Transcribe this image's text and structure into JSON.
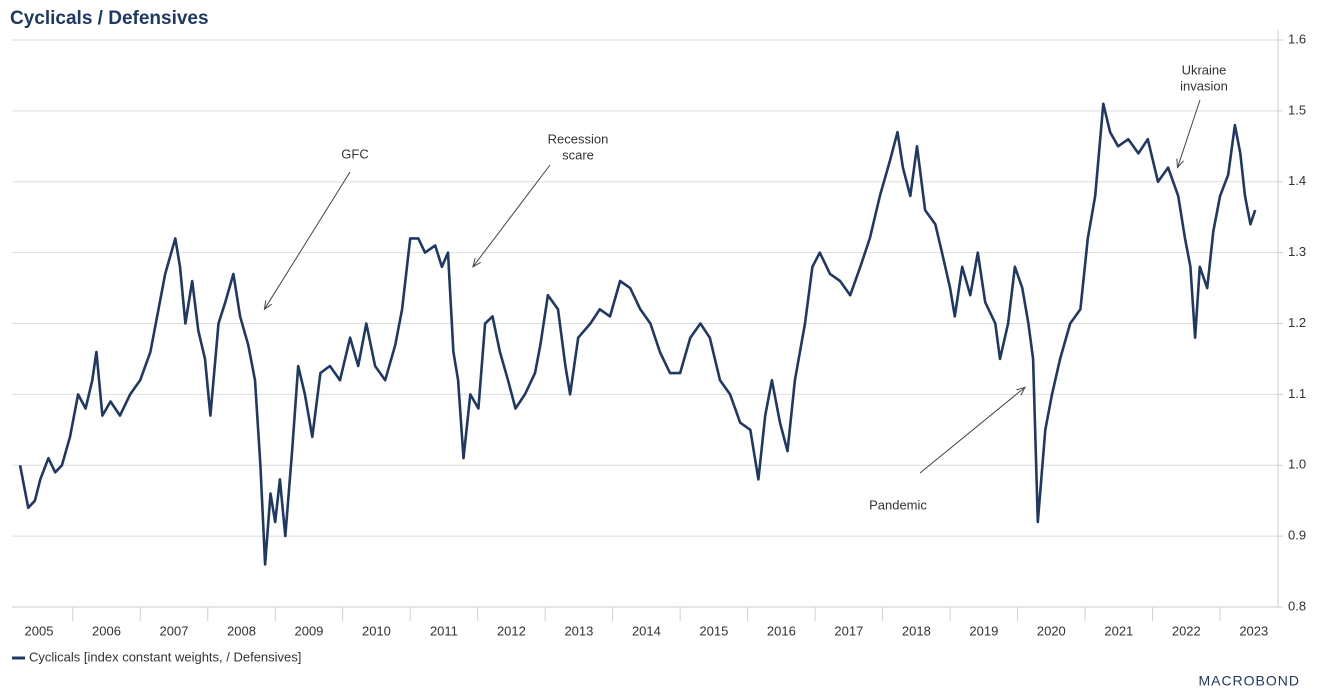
{
  "chart_data": {
    "type": "line",
    "title": "Cyclicals / Defensives",
    "x": [
      2005.22,
      2005.34,
      2005.44,
      2005.52,
      2005.64,
      2005.74,
      2005.84,
      2005.96,
      2006.08,
      2006.19,
      2006.29,
      2006.35,
      2006.44,
      2006.56,
      2006.7,
      2006.85,
      2007.0,
      2007.15,
      2007.27,
      2007.37,
      2007.52,
      2007.59,
      2007.67,
      2007.77,
      2007.86,
      2007.96,
      2008.04,
      2008.16,
      2008.26,
      2008.38,
      2008.48,
      2008.6,
      2008.7,
      2008.78,
      2008.85,
      2008.93,
      2009.0,
      2009.07,
      2009.15,
      2009.25,
      2009.34,
      2009.44,
      2009.55,
      2009.67,
      2009.81,
      2009.96,
      2010.11,
      2010.23,
      2010.35,
      2010.48,
      2010.63,
      2010.78,
      2010.88,
      2011.0,
      2011.12,
      2011.22,
      2011.37,
      2011.47,
      2011.56,
      2011.64,
      2011.71,
      2011.79,
      2011.89,
      2012.01,
      2012.11,
      2012.22,
      2012.33,
      2012.45,
      2012.56,
      2012.7,
      2012.85,
      2012.93,
      2013.04,
      2013.19,
      2013.3,
      2013.37,
      2013.49,
      2013.67,
      2013.81,
      2013.96,
      2014.11,
      2014.26,
      2014.41,
      2014.56,
      2014.7,
      2014.85,
      2015.0,
      2015.15,
      2015.3,
      2015.44,
      2015.59,
      2015.74,
      2015.89,
      2016.04,
      2016.16,
      2016.26,
      2016.36,
      2016.48,
      2016.59,
      2016.7,
      2016.85,
      2016.96,
      2017.07,
      2017.22,
      2017.37,
      2017.52,
      2017.67,
      2017.81,
      2017.96,
      2018.11,
      2018.22,
      2018.3,
      2018.41,
      2018.51,
      2018.63,
      2018.78,
      2018.88,
      2019.0,
      2019.07,
      2019.18,
      2019.3,
      2019.41,
      2019.52,
      2019.67,
      2019.74,
      2019.86,
      2019.96,
      2020.07,
      2020.16,
      2020.23,
      2020.3,
      2020.41,
      2020.51,
      2020.63,
      2020.78,
      2020.93,
      2021.04,
      2021.15,
      2021.27,
      2021.37,
      2021.49,
      2021.64,
      2021.79,
      2021.93,
      2022.08,
      2022.23,
      2022.38,
      2022.48,
      2022.56,
      2022.63,
      2022.7,
      2022.81,
      2022.9,
      2023.0,
      2023.12,
      2023.22,
      2023.3,
      2023.37,
      2023.45,
      2023.52
    ],
    "series": [
      {
        "name": "Cyclicals [index constant weights, / Defensives]",
        "color": "#1f3864",
        "values": [
          1.0,
          0.94,
          0.95,
          0.98,
          1.01,
          0.99,
          1.0,
          1.04,
          1.1,
          1.08,
          1.12,
          1.16,
          1.07,
          1.09,
          1.07,
          1.1,
          1.12,
          1.16,
          1.22,
          1.27,
          1.32,
          1.28,
          1.2,
          1.26,
          1.19,
          1.15,
          1.07,
          1.2,
          1.23,
          1.27,
          1.21,
          1.17,
          1.12,
          1.0,
          0.86,
          0.96,
          0.92,
          0.98,
          0.9,
          1.02,
          1.14,
          1.1,
          1.04,
          1.13,
          1.14,
          1.12,
          1.18,
          1.14,
          1.2,
          1.14,
          1.12,
          1.17,
          1.22,
          1.32,
          1.32,
          1.3,
          1.31,
          1.28,
          1.3,
          1.16,
          1.12,
          1.01,
          1.1,
          1.08,
          1.2,
          1.21,
          1.16,
          1.12,
          1.08,
          1.1,
          1.13,
          1.17,
          1.24,
          1.22,
          1.14,
          1.1,
          1.18,
          1.2,
          1.22,
          1.21,
          1.26,
          1.25,
          1.22,
          1.2,
          1.16,
          1.13,
          1.13,
          1.18,
          1.2,
          1.18,
          1.12,
          1.1,
          1.06,
          1.05,
          0.98,
          1.07,
          1.12,
          1.06,
          1.02,
          1.12,
          1.2,
          1.28,
          1.3,
          1.27,
          1.26,
          1.24,
          1.28,
          1.32,
          1.38,
          1.43,
          1.47,
          1.42,
          1.38,
          1.45,
          1.36,
          1.34,
          1.3,
          1.25,
          1.21,
          1.28,
          1.24,
          1.3,
          1.23,
          1.2,
          1.15,
          1.2,
          1.28,
          1.25,
          1.2,
          1.15,
          0.92,
          1.05,
          1.1,
          1.15,
          1.2,
          1.22,
          1.32,
          1.38,
          1.51,
          1.47,
          1.45,
          1.46,
          1.44,
          1.46,
          1.4,
          1.42,
          1.38,
          1.32,
          1.28,
          1.18,
          1.28,
          1.25,
          1.33,
          1.38,
          1.41,
          1.48,
          1.44,
          1.38,
          1.34,
          1.36
        ]
      }
    ],
    "xlim": [
      2005.1,
      2023.74
    ],
    "xticks": [
      {
        "value": 2005,
        "label": "2005"
      },
      {
        "value": 2006,
        "label": "2006"
      },
      {
        "value": 2007,
        "label": "2007"
      },
      {
        "value": 2008,
        "label": "2008"
      },
      {
        "value": 2009,
        "label": "2009"
      },
      {
        "value": 2010,
        "label": "2010"
      },
      {
        "value": 2011,
        "label": "2011"
      },
      {
        "value": 2012,
        "label": "2012"
      },
      {
        "value": 2013,
        "label": "2013"
      },
      {
        "value": 2014,
        "label": "2014"
      },
      {
        "value": 2015,
        "label": "2015"
      },
      {
        "value": 2016,
        "label": "2016"
      },
      {
        "value": 2017,
        "label": "2017"
      },
      {
        "value": 2018,
        "label": "2018"
      },
      {
        "value": 2019,
        "label": "2019"
      },
      {
        "value": 2020,
        "label": "2020"
      },
      {
        "value": 2021,
        "label": "2021"
      },
      {
        "value": 2022,
        "label": "2022"
      },
      {
        "value": 2023,
        "label": "2023"
      }
    ],
    "ylim": [
      0.8,
      1.6
    ],
    "yticks": [
      0.8,
      0.9,
      {
        "value": 1.0,
        "label": "1.0"
      },
      1.1,
      1.2,
      1.3,
      1.4,
      1.5,
      1.6
    ],
    "grid": true,
    "legend": "bottom-left",
    "annotations": [
      {
        "lines": [
          "GFC"
        ],
        "x": 2008.84,
        "y": 1.22
      },
      {
        "lines": [
          "Recession",
          "scare"
        ],
        "x": 2011.93,
        "y": 1.28
      },
      {
        "lines": [
          "Pandemic"
        ],
        "x": 2020.11,
        "y": 1.11
      },
      {
        "lines": [
          "Ukraine",
          "invasion"
        ],
        "x": 2022.37,
        "y": 1.42
      }
    ]
  },
  "watermark": "MACROBOND"
}
